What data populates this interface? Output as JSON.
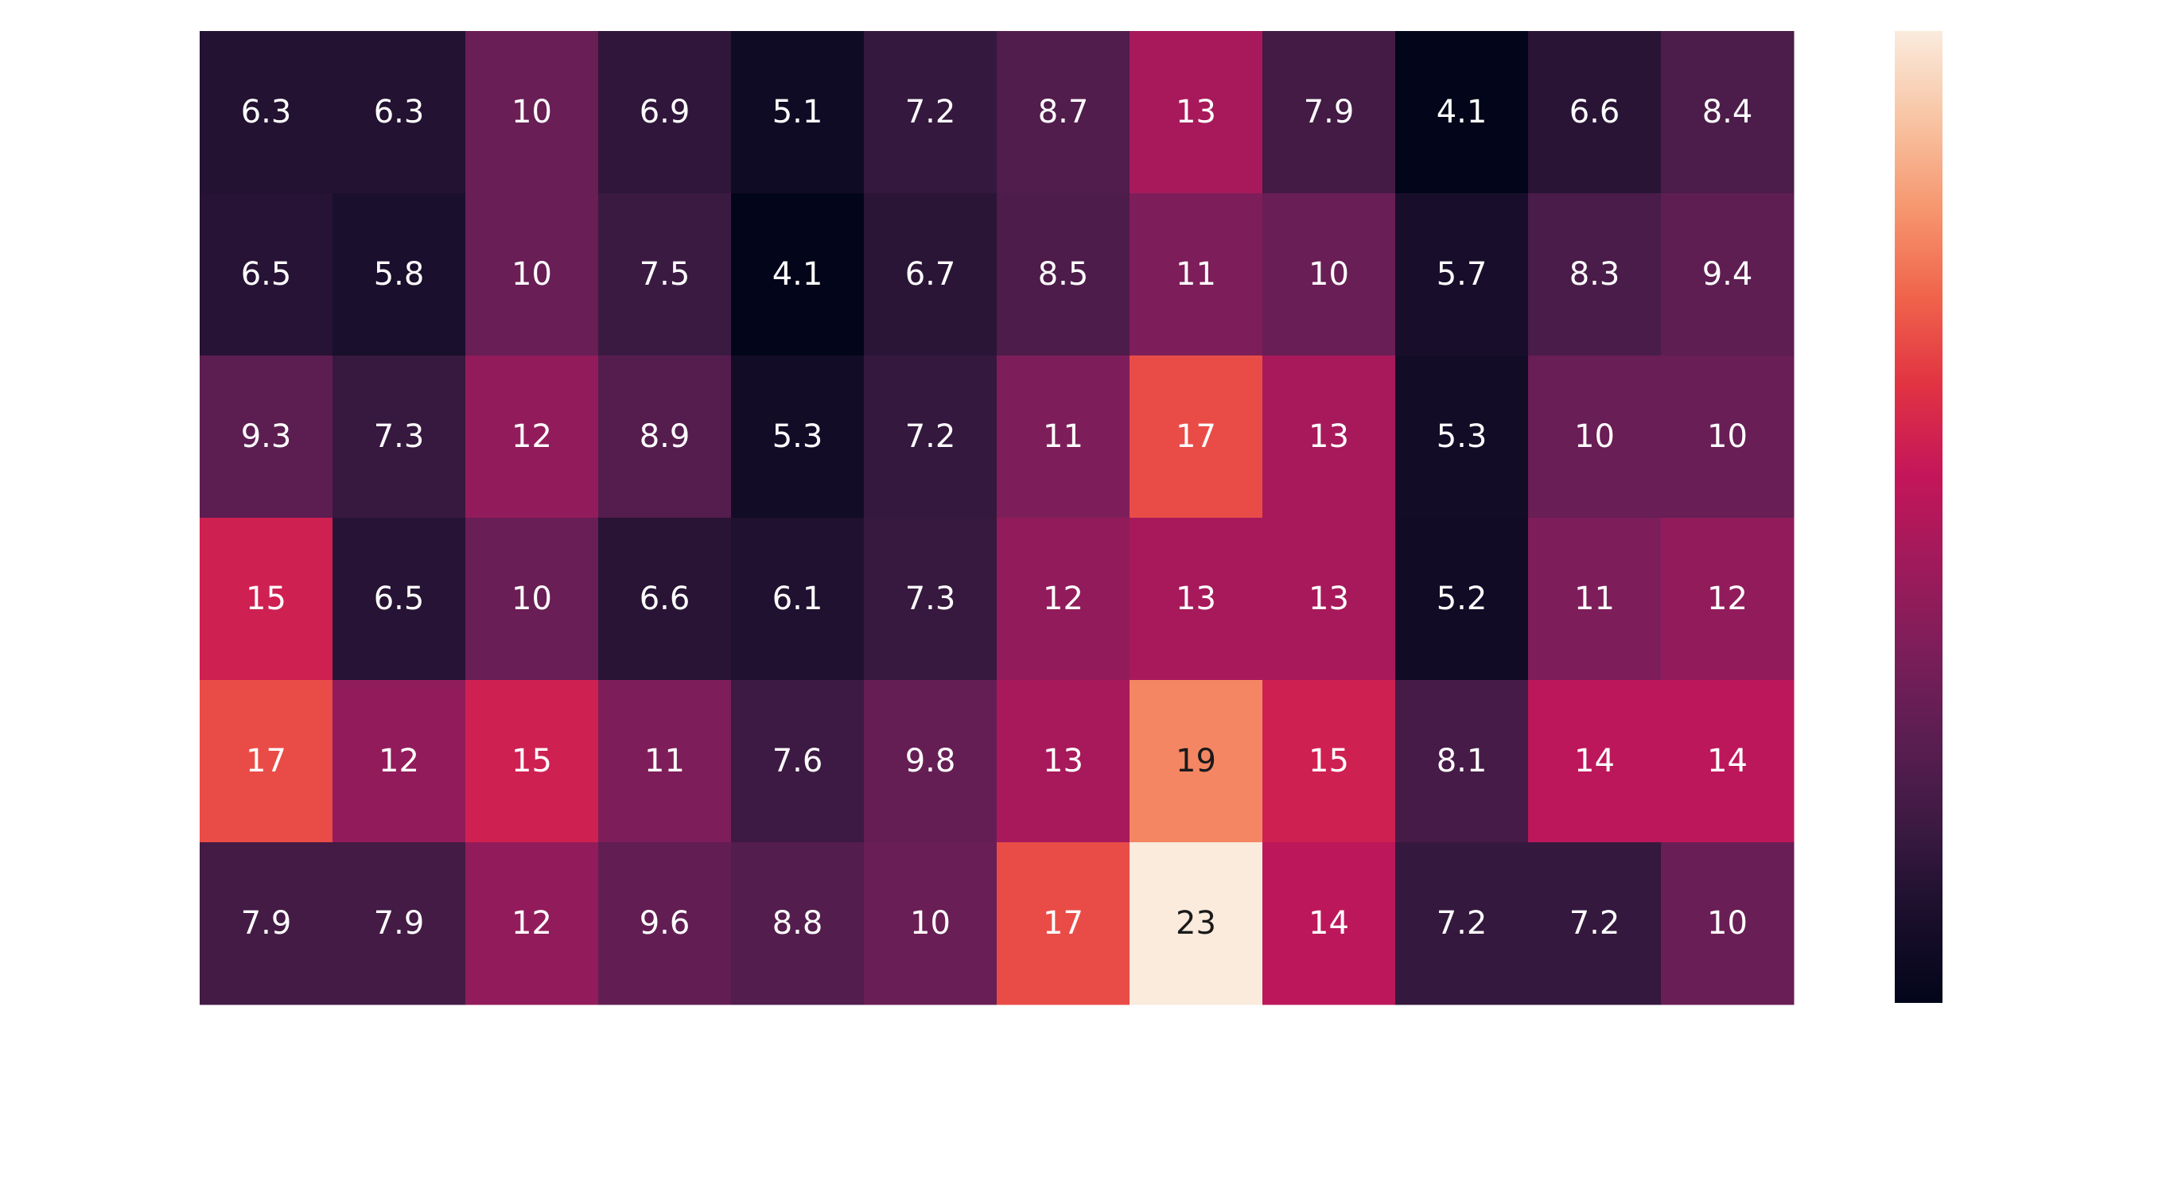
{
  "chart_data": {
    "type": "heatmap",
    "title": "",
    "xlabel": "",
    "ylabel": "",
    "rows": 6,
    "cols": 12,
    "values": [
      [
        6.3,
        6.3,
        10,
        6.9,
        5.1,
        7.2,
        8.7,
        13,
        7.9,
        4.1,
        6.6,
        8.4
      ],
      [
        6.5,
        5.8,
        10,
        7.5,
        4.1,
        6.7,
        8.5,
        11,
        10,
        5.7,
        8.3,
        9.4
      ],
      [
        9.3,
        7.3,
        12,
        8.9,
        5.3,
        7.2,
        11,
        17,
        13,
        5.3,
        10,
        10
      ],
      [
        15,
        6.5,
        10,
        6.6,
        6.1,
        7.3,
        12,
        13,
        13,
        5.2,
        11,
        12
      ],
      [
        17,
        12,
        15,
        11,
        7.6,
        9.8,
        13,
        19,
        15,
        8.1,
        14,
        14
      ],
      [
        7.9,
        7.9,
        12,
        9.6,
        8.8,
        10,
        17,
        23,
        14,
        7.2,
        7.2,
        10
      ]
    ],
    "color_range": [
      4.1,
      23
    ],
    "colorbar": {
      "orientation": "vertical",
      "placement": "right",
      "ticks": []
    },
    "colormap": {
      "name": "rocket",
      "stops": [
        "#03051a",
        "#1a0f2c",
        "#3c1a42",
        "#5b1e51",
        "#7c1e5a",
        "#a11a5b",
        "#c5165a",
        "#e13342",
        "#f0644b",
        "#f6976f",
        "#f8c4a3",
        "#faebdd"
      ]
    },
    "label_colors": {
      "light": "#ffffff",
      "dark": "#1a1a1a"
    },
    "annotated": true,
    "grid": false
  }
}
